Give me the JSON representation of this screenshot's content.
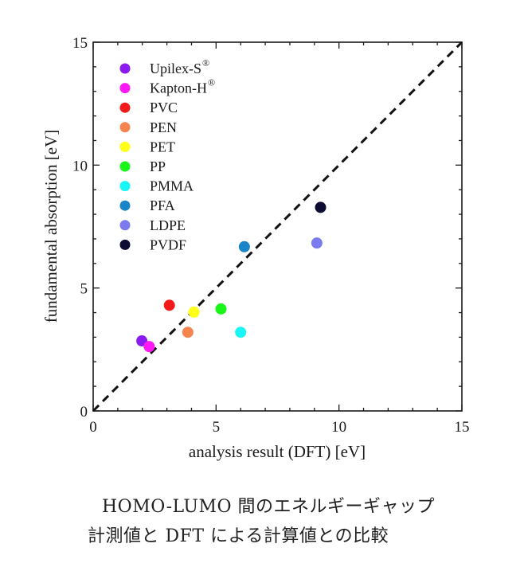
{
  "chart_data": {
    "type": "scatter",
    "xlabel": "analysis result (DFT) [eV]",
    "ylabel": "fundamental absorption [eV]",
    "xlim": [
      0,
      15
    ],
    "ylim": [
      0,
      15
    ],
    "xticks": [
      "0",
      "5",
      "10",
      "15"
    ],
    "yticks": [
      "0",
      "5",
      "10",
      "15"
    ],
    "reference_line": "y = x (dashed)",
    "legend_position": "top-left",
    "grid": false,
    "series": [
      {
        "name": "Upilex-S",
        "superscript": "®",
        "color": "#8B1AF0",
        "x": 1.98,
        "y": 2.85
      },
      {
        "name": "Kapton-H",
        "superscript": "®",
        "color": "#FF1AF5",
        "x": 2.28,
        "y": 2.62
      },
      {
        "name": "PVC",
        "color": "#F51A1A",
        "x": 3.1,
        "y": 4.3
      },
      {
        "name": "PEN",
        "color": "#F5844F",
        "x": 3.85,
        "y": 3.2
      },
      {
        "name": "PET",
        "color": "#FFFF1A",
        "x": 4.1,
        "y": 4.02
      },
      {
        "name": "PP",
        "color": "#1AF51A",
        "x": 5.2,
        "y": 4.15
      },
      {
        "name": "PMMA",
        "color": "#1AF5F5",
        "x": 6.0,
        "y": 3.2
      },
      {
        "name": "PFA",
        "color": "#1A84C8",
        "x": 6.15,
        "y": 6.68
      },
      {
        "name": "LDPE",
        "color": "#7B7BF0",
        "x": 9.1,
        "y": 6.83
      },
      {
        "name": "PVDF",
        "color": "#0D0D33",
        "x": 9.25,
        "y": 8.28
      }
    ]
  },
  "caption": {
    "line1": "HOMO-LUMO 間のエネルギーギャップ",
    "line2": "計測値と DFT による計算値との比較"
  }
}
